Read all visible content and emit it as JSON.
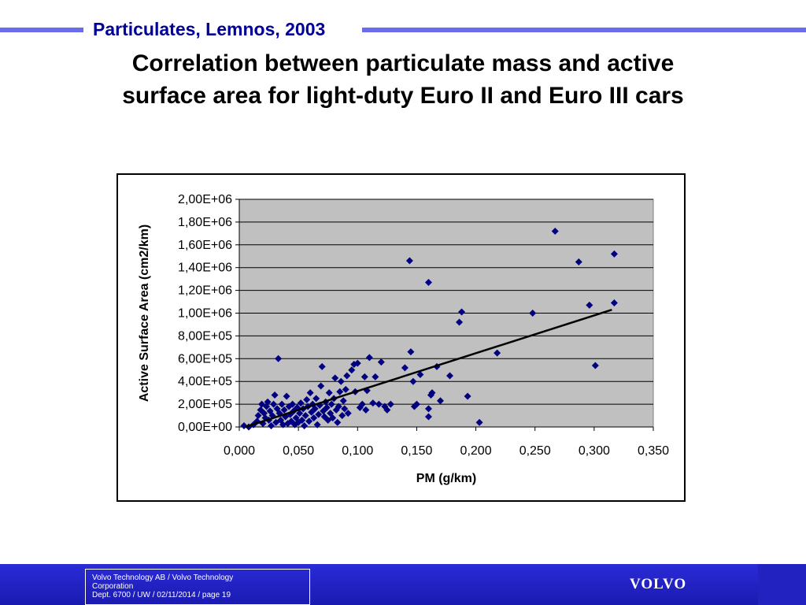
{
  "header": {
    "section_title": "Particulates, Lemnos, 2003",
    "accent_color": "#6b6bf0",
    "title_color": "#000099"
  },
  "slide": {
    "title": "Correlation between particulate mass and active surface area for light-duty Euro II and Euro III cars"
  },
  "chart_data": {
    "type": "scatter",
    "title": "",
    "xlabel": "PM (g/km)",
    "ylabel": "Active Surface Area (cm2/km)",
    "xlim": [
      0,
      0.35
    ],
    "ylim": [
      0,
      2000000
    ],
    "x_ticks": [
      "0,000",
      "0,050",
      "0,100",
      "0,150",
      "0,200",
      "0,250",
      "0,300",
      "0,350"
    ],
    "y_ticks": [
      "0,00E+00",
      "2,00E+05",
      "4,00E+05",
      "6,00E+05",
      "8,00E+05",
      "1,00E+06",
      "1,20E+06",
      "1,40E+06",
      "1,60E+06",
      "1,80E+06",
      "2,00E+06"
    ],
    "grid": "horizontal",
    "plot_background": "#c0c0c0",
    "marker_color": "#000080",
    "marker": "diamond",
    "points": [
      [
        0.004,
        10000
      ],
      [
        0.008,
        0
      ],
      [
        0.012,
        20000
      ],
      [
        0.015,
        50000
      ],
      [
        0.016,
        100000
      ],
      [
        0.018,
        150000
      ],
      [
        0.019,
        200000
      ],
      [
        0.02,
        30000
      ],
      [
        0.021,
        120000
      ],
      [
        0.022,
        80000
      ],
      [
        0.023,
        180000
      ],
      [
        0.024,
        220000
      ],
      [
        0.025,
        60000
      ],
      [
        0.026,
        140000
      ],
      [
        0.027,
        10000
      ],
      [
        0.028,
        100000
      ],
      [
        0.029,
        200000
      ],
      [
        0.03,
        280000
      ],
      [
        0.031,
        40000
      ],
      [
        0.032,
        160000
      ],
      [
        0.033,
        600000
      ],
      [
        0.034,
        120000
      ],
      [
        0.035,
        60000
      ],
      [
        0.036,
        200000
      ],
      [
        0.037,
        20000
      ],
      [
        0.038,
        150000
      ],
      [
        0.039,
        90000
      ],
      [
        0.04,
        270000
      ],
      [
        0.041,
        30000
      ],
      [
        0.042,
        180000
      ],
      [
        0.043,
        110000
      ],
      [
        0.044,
        50000
      ],
      [
        0.045,
        200000
      ],
      [
        0.046,
        140000
      ],
      [
        0.047,
        20000
      ],
      [
        0.048,
        80000
      ],
      [
        0.049,
        170000
      ],
      [
        0.05,
        40000
      ],
      [
        0.051,
        120000
      ],
      [
        0.052,
        210000
      ],
      [
        0.053,
        60000
      ],
      [
        0.054,
        160000
      ],
      [
        0.055,
        10000
      ],
      [
        0.056,
        100000
      ],
      [
        0.057,
        240000
      ],
      [
        0.058,
        180000
      ],
      [
        0.059,
        50000
      ],
      [
        0.06,
        300000
      ],
      [
        0.061,
        130000
      ],
      [
        0.062,
        200000
      ],
      [
        0.063,
        80000
      ],
      [
        0.064,
        160000
      ],
      [
        0.065,
        250000
      ],
      [
        0.066,
        20000
      ],
      [
        0.067,
        110000
      ],
      [
        0.068,
        190000
      ],
      [
        0.069,
        360000
      ],
      [
        0.07,
        530000
      ],
      [
        0.071,
        140000
      ],
      [
        0.072,
        90000
      ],
      [
        0.073,
        220000
      ],
      [
        0.074,
        170000
      ],
      [
        0.075,
        60000
      ],
      [
        0.076,
        300000
      ],
      [
        0.077,
        120000
      ],
      [
        0.078,
        200000
      ],
      [
        0.079,
        80000
      ],
      [
        0.08,
        250000
      ],
      [
        0.081,
        430000
      ],
      [
        0.082,
        150000
      ],
      [
        0.083,
        40000
      ],
      [
        0.084,
        180000
      ],
      [
        0.085,
        310000
      ],
      [
        0.086,
        400000
      ],
      [
        0.087,
        100000
      ],
      [
        0.088,
        230000
      ],
      [
        0.089,
        160000
      ],
      [
        0.09,
        330000
      ],
      [
        0.091,
        450000
      ],
      [
        0.092,
        120000
      ],
      [
        0.095,
        500000
      ],
      [
        0.097,
        550000
      ],
      [
        0.098,
        310000
      ],
      [
        0.1,
        560000
      ],
      [
        0.102,
        170000
      ],
      [
        0.104,
        200000
      ],
      [
        0.106,
        440000
      ],
      [
        0.107,
        150000
      ],
      [
        0.108,
        320000
      ],
      [
        0.11,
        610000
      ],
      [
        0.113,
        210000
      ],
      [
        0.115,
        440000
      ],
      [
        0.118,
        200000
      ],
      [
        0.12,
        570000
      ],
      [
        0.123,
        180000
      ],
      [
        0.125,
        150000
      ],
      [
        0.128,
        200000
      ],
      [
        0.14,
        520000
      ],
      [
        0.144,
        1460000
      ],
      [
        0.145,
        660000
      ],
      [
        0.147,
        400000
      ],
      [
        0.148,
        180000
      ],
      [
        0.15,
        200000
      ],
      [
        0.153,
        460000
      ],
      [
        0.16,
        1270000
      ],
      [
        0.16,
        160000
      ],
      [
        0.16,
        90000
      ],
      [
        0.162,
        280000
      ],
      [
        0.163,
        300000
      ],
      [
        0.167,
        530000
      ],
      [
        0.17,
        230000
      ],
      [
        0.178,
        450000
      ],
      [
        0.186,
        920000
      ],
      [
        0.188,
        1010000
      ],
      [
        0.193,
        270000
      ],
      [
        0.203,
        40000
      ],
      [
        0.218,
        650000
      ],
      [
        0.248,
        1000000
      ],
      [
        0.267,
        1720000
      ],
      [
        0.287,
        1450000
      ],
      [
        0.296,
        1070000
      ],
      [
        0.301,
        540000
      ],
      [
        0.317,
        1520000
      ],
      [
        0.317,
        1090000
      ]
    ],
    "trendline": {
      "x": [
        0.005,
        0.315
      ],
      "y": [
        0,
        1030000
      ]
    }
  },
  "footer": {
    "line1": "Volvo Technology AB / Volvo Technology",
    "line2": "Corporation",
    "line3": "Dept. 6700 / UW / 02/11/2014 / page 19",
    "logo_text": "VOLVO"
  }
}
